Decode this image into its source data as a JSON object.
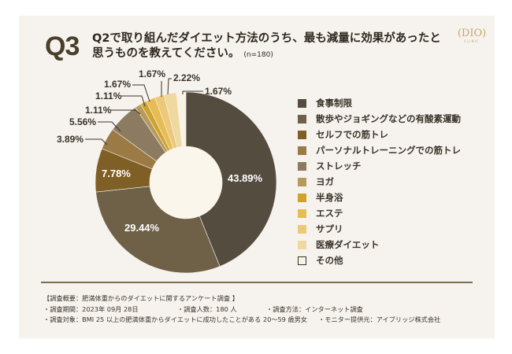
{
  "header": {
    "q_number": "Q3",
    "title_line1": "Q2で取り組んだダイエット方法のうち、最も減量に効果があったと",
    "title_line2": "思うものを教えてください。",
    "sample": "(n=180)"
  },
  "logo": {
    "name": "DIO",
    "sub": "CLINIC"
  },
  "chart_data": {
    "type": "pie",
    "donut": true,
    "start": "top, clockwise",
    "legend_position": "right",
    "categories": [
      "食事制限",
      "散歩やジョギングなどの有酸素運動",
      "セルフでの筋トレ",
      "パーソナルトレーニングでの筋トレ",
      "ストレッチ",
      "ヨガ",
      "半身浴",
      "エステ",
      "サプリ",
      "医療ダイエット",
      "その他"
    ],
    "values": [
      43.89,
      29.44,
      7.78,
      3.89,
      5.56,
      1.11,
      1.11,
      1.67,
      1.67,
      2.22,
      1.67
    ],
    "labels": [
      "43.89%",
      "29.44%",
      "7.78%",
      "3.89%",
      "5.56%",
      "1.11%",
      "1.11%",
      "1.67%",
      "1.67%",
      "2.22%",
      "1.67%"
    ],
    "colors": [
      "#554c40",
      "#6e6147",
      "#7f5f25",
      "#9b7a45",
      "#8c7b60",
      "#b59a5c",
      "#cfa22e",
      "#e6bd55",
      "#ecc878",
      "#f0d9a0",
      "#f8f3e6"
    ]
  },
  "notes": {
    "summary": "【調査概要：肥満体重からのダイエットに関するアンケート調査 】",
    "period": "・調査期間：2023年 09月 28日",
    "count": "・調査人数：180 人",
    "method": "・調査方法：インターネット調査",
    "target": "・調査対象：BMI 25 以上の肥満体重からダイエットに成功したことがある 20～59 歳男女",
    "provider": "・モニター提供元：アイブリッジ株式会社"
  }
}
